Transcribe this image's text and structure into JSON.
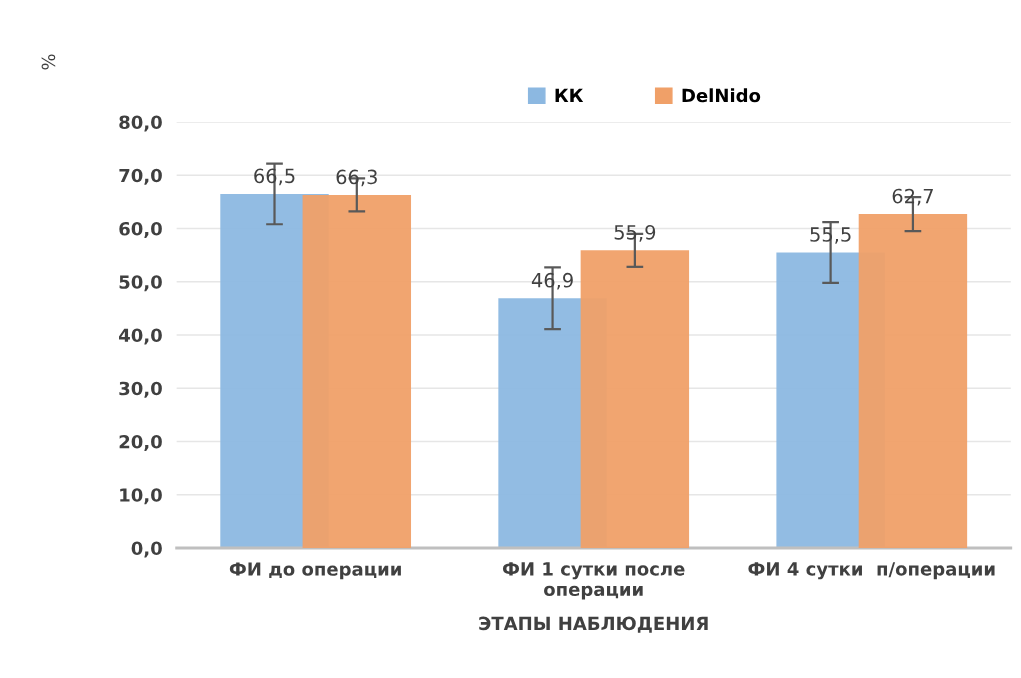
{
  "chart_data": {
    "type": "bar",
    "ylabel": "%",
    "xlabel": "ЭТАПЫ НАБЛЮДЕНИЯ",
    "categories": [
      "ФИ до операции",
      "ФИ 1 сутки после\nоперации",
      "ФИ 4 сутки  п/операции"
    ],
    "series": [
      {
        "name": "КК",
        "color": "#8cb8e1",
        "values": [
          66.5,
          46.9,
          55.5
        ],
        "errors": [
          5.7,
          5.8,
          5.7
        ],
        "value_labels": [
          "66,5",
          "46,9",
          "55,5"
        ]
      },
      {
        "name": "DelNido",
        "color": "#f0a068",
        "values": [
          66.3,
          55.9,
          62.7
        ],
        "errors": [
          3.1,
          3.1,
          3.2
        ],
        "value_labels": [
          "66,3",
          "55,9",
          "62,7"
        ]
      }
    ],
    "ylim": [
      0,
      80
    ],
    "yticks": [
      {
        "value": 0,
        "label": "0,0"
      },
      {
        "value": 10,
        "label": "10,0"
      },
      {
        "value": 20,
        "label": "20,0"
      },
      {
        "value": 30,
        "label": "30,0"
      },
      {
        "value": 40,
        "label": "40,0"
      },
      {
        "value": 50,
        "label": "50,0"
      },
      {
        "value": 60,
        "label": "60,0"
      },
      {
        "value": 70,
        "label": "70,0"
      },
      {
        "value": 80,
        "label": "80,0"
      }
    ],
    "grid": "y",
    "legend": "top right"
  }
}
